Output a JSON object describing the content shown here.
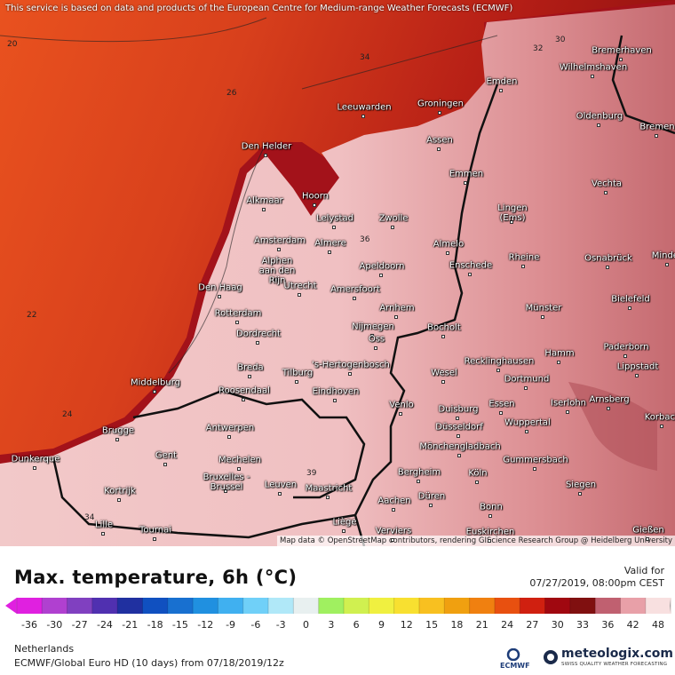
{
  "header": {
    "notice": "This service is based on data and products of the European Centre for Medium-range Weather Forecasts (ECMWF)"
  },
  "map": {
    "attribution": "Map data © OpenStreetMap contributors, rendering GIScience Research Group @ Heidelberg University",
    "contour_labels": [
      "20",
      "24",
      "26",
      "22",
      "34",
      "32",
      "30",
      "36",
      "39",
      "34"
    ],
    "cities": [
      "Bremerhaven",
      "Wilhelmshaven",
      "Emden",
      "Oldenburg",
      "Bremen",
      "Leeuwarden",
      "Groningen",
      "Assen",
      "Den Helder",
      "Emmen",
      "Vechta",
      "Alkmaar",
      "Hoorn",
      "Lelystad",
      "Zwolle",
      "Lingen (Ems)",
      "Amsterdam",
      "Almere",
      "Almelo",
      "Rheine",
      "Osnabrück",
      "Minden",
      "Alphen aan den Rijn",
      "Apeldoorn",
      "Enschede",
      "Utrecht",
      "Amersfoort",
      "Den Haag",
      "Bielefeld",
      "Rotterdam",
      "Arnhem",
      "Münster",
      "Dordrecht",
      "Nijmegen",
      "Oss",
      "Bocholt",
      "Hamm",
      "Paderborn",
      "Breda",
      "Tilburg",
      "'s-Hertogenbosch",
      "Recklinghausen",
      "Lippstadt",
      "Middelburg",
      "Wesel",
      "Dortmund",
      "Roosendaal",
      "Eindhoven",
      "Arnsberg",
      "Essen",
      "Iserlohn",
      "Venlo",
      "Duisburg",
      "Wuppertal",
      "Korbach",
      "Antwerpen",
      "Brugge",
      "Düsseldorf",
      "Mönchengladbach",
      "Gent",
      "Dunkerque",
      "Mechelen",
      "Gummersbach",
      "Bruxelles - Brussel",
      "Leuven",
      "Maastricht",
      "Bergheim",
      "Köln",
      "Siegen",
      "Kortrijk",
      "Düren",
      "Aachen",
      "Bonn",
      "Lille",
      "Tournai",
      "Liège",
      "Verviers",
      "Euskirchen",
      "Gießen"
    ]
  },
  "legend": {
    "title": "Max. temperature, 6h (°C)",
    "valid_label": "Valid for",
    "valid_time": "07/27/2019, 08:00pm CEST",
    "ticks": [
      -36,
      -30,
      -27,
      -24,
      -21,
      -18,
      -15,
      -12,
      -9,
      -6,
      -3,
      0,
      3,
      6,
      9,
      12,
      15,
      18,
      21,
      24,
      27,
      30,
      33,
      36,
      42,
      48
    ]
  },
  "footer": {
    "region": "Netherlands",
    "model": "ECMWF/Global Euro HD (10 days) from 07/18/2019/12z",
    "ecmwf": "ECMWF",
    "brand": "meteologix.com",
    "tagline": "SWISS QUALITY WEATHER FORECASTING"
  }
}
